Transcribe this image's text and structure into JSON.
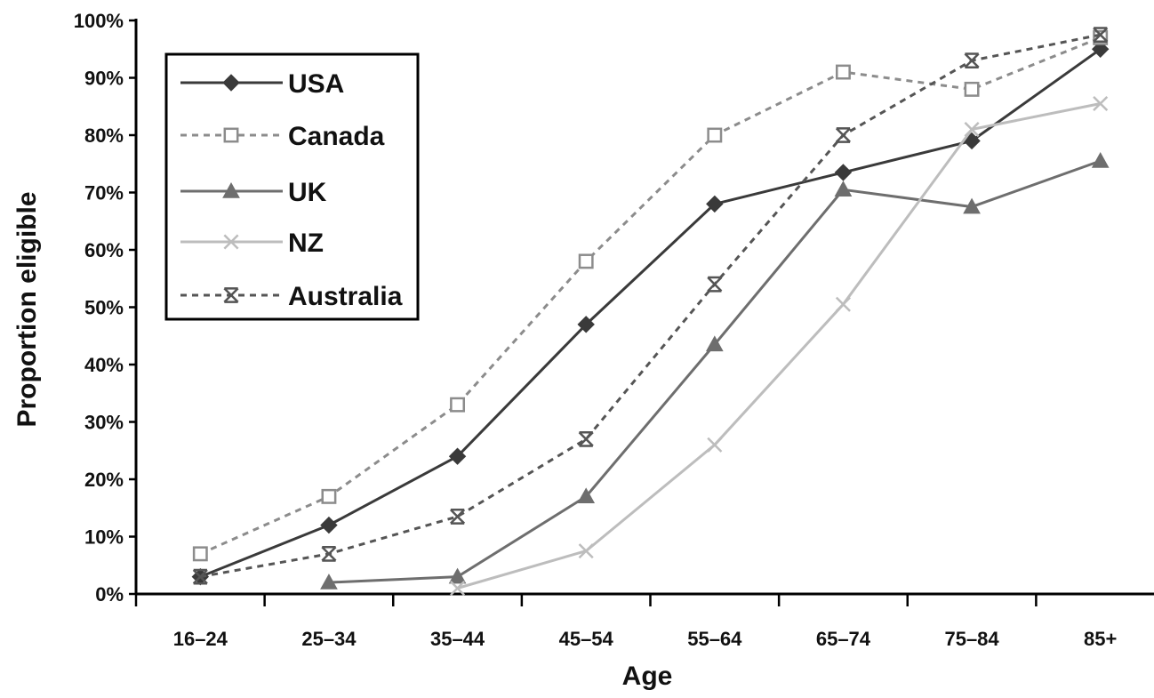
{
  "chart_data": {
    "type": "line",
    "xlabel": "Age",
    "ylabel": "Proportion eligible",
    "ylim": [
      0,
      100
    ],
    "y_ticks": [
      "0%",
      "10%",
      "20%",
      "30%",
      "40%",
      "50%",
      "60%",
      "70%",
      "80%",
      "90%",
      "100%"
    ],
    "categories": [
      "16–24",
      "25–34",
      "35–44",
      "45–54",
      "55–64",
      "65–74",
      "75–84",
      "85+"
    ],
    "grid": false,
    "legend_position": "top-left",
    "series": [
      {
        "name": "USA",
        "color": "#3a3a3a",
        "dash": "solid",
        "marker": "diamond",
        "values": [
          3,
          12,
          24,
          47,
          68,
          73.5,
          79,
          95
        ]
      },
      {
        "name": "Canada",
        "color": "#8c8c8c",
        "dash": "dotted",
        "marker": "open-square",
        "values": [
          7,
          17,
          33,
          58,
          80,
          91,
          88,
          97
        ]
      },
      {
        "name": "UK",
        "color": "#6e6e6e",
        "dash": "solid",
        "marker": "triangle",
        "values": [
          null,
          2,
          3,
          17,
          43.5,
          70.5,
          67.5,
          75.5
        ]
      },
      {
        "name": "NZ",
        "color": "#bdbdbd",
        "dash": "solid",
        "marker": "x",
        "values": [
          null,
          null,
          1,
          7.5,
          26,
          50.5,
          81,
          85.5
        ]
      },
      {
        "name": "Australia",
        "color": "#555555",
        "dash": "dotted",
        "marker": "star",
        "values": [
          3,
          7,
          13.5,
          27,
          54,
          80,
          93,
          97.5
        ]
      }
    ]
  }
}
